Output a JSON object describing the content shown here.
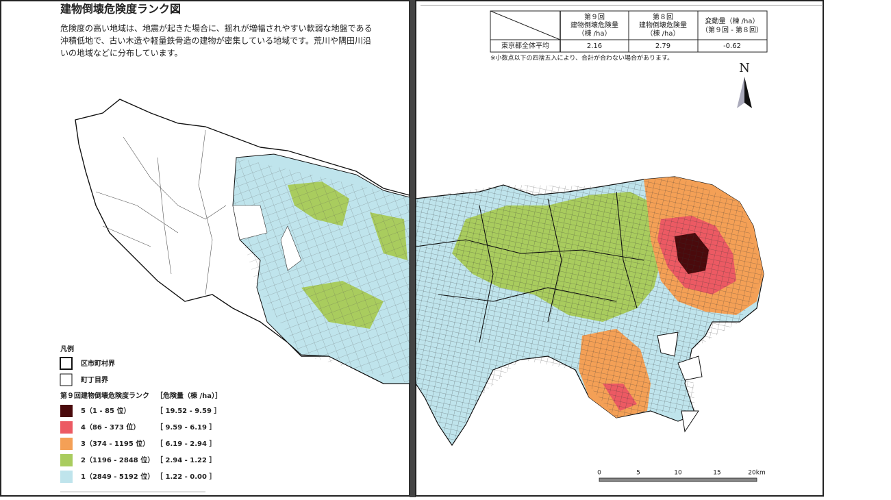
{
  "title": "建物倒壊危険度ランク図",
  "description": [
    "危険度の高い地域は、地震が起きた場合に、揺れが増幅されやすい軟弱な地盤である",
    "沖積低地で、古い木造や軽量鉄骨造の建物が密集している地域です。荒川や隅田川沿",
    "いの地域などに分布しています。"
  ],
  "table": {
    "headers": [
      [
        "第９回",
        "建物倒壊危険量",
        "（棟 /ha）"
      ],
      [
        "第８回",
        "建物倒壊危険量",
        "（棟 /ha）"
      ],
      [
        "変動量（棟 /ha）",
        "（第９回 - 第８回）"
      ]
    ],
    "rows": [
      [
        "東京都全体平均",
        "2.16",
        "2.79",
        "-0.62"
      ]
    ]
  },
  "note": "※小数点以下の四捨五入により、合計が合わない場合があります。",
  "north": "N",
  "legend": {
    "title": "凡例",
    "boundaries": [
      "区市町村界",
      "町丁目界"
    ],
    "rank_title": "第９回建物倒壊危険度ランク",
    "range_title": "［危険量（棟 /ha）］",
    "ranks": [
      {
        "label": "5（1 - 85 位）",
        "range": "［ 19.52 - 9.59 ］",
        "color": "#4a0a0c"
      },
      {
        "label": "4（86 - 373 位）",
        "range": "［ 9.59 - 6.19 ］",
        "color": "#ec5a63"
      },
      {
        "label": "3（374 - 1195 位）",
        "range": "［ 6.19 - 2.94 ］",
        "color": "#f4a056"
      },
      {
        "label": "2（1196 - 2848 位）",
        "range": "［ 2.94 - 1.22 ］",
        "color": "#a9cc5e"
      },
      {
        "label": "1（2849 - 5192 位）",
        "range": "［ 1.22 - 0.00 ］",
        "color": "#bfe4ec"
      }
    ]
  },
  "scale": [
    "0",
    "5",
    "10",
    "15",
    "20km"
  ]
}
